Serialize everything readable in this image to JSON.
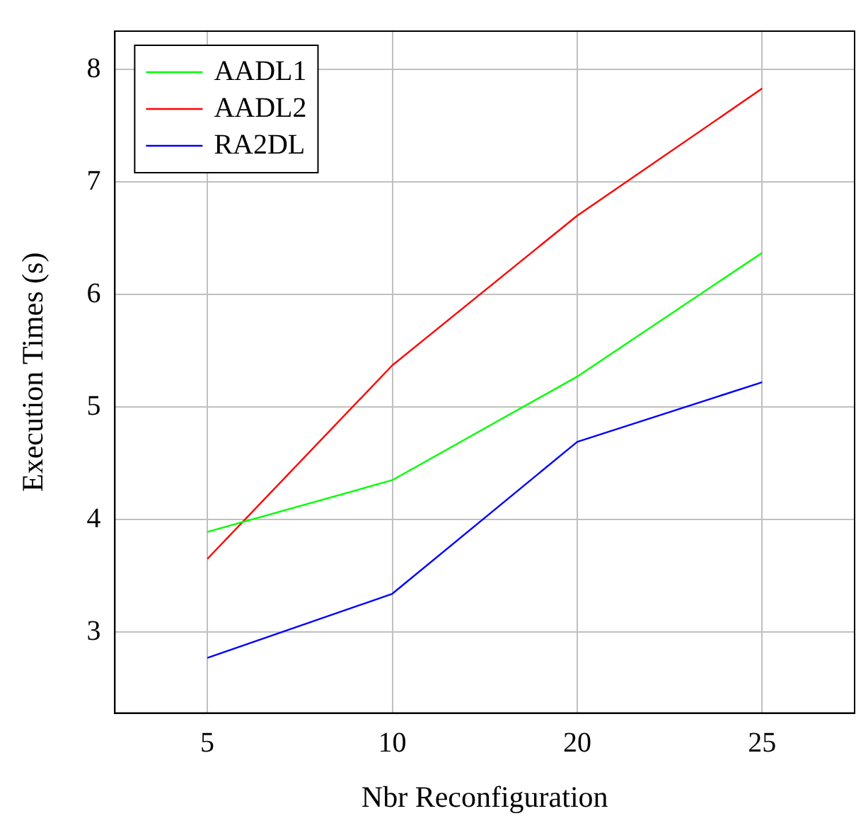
{
  "chart_data": {
    "type": "line",
    "xlabel": "Nbr Reconfiguration",
    "ylabel": "Execution Times (s)",
    "categories": [
      "5",
      "10",
      "20",
      "25"
    ],
    "series": [
      {
        "name": "AADL1",
        "color": "#00ff00",
        "values": [
          3.89,
          4.35,
          5.27,
          6.37
        ]
      },
      {
        "name": "AADL2",
        "color": "#ff0000",
        "values": [
          3.65,
          5.37,
          6.7,
          7.83
        ]
      },
      {
        "name": "RA2DL",
        "color": "#0000ff",
        "values": [
          2.77,
          3.34,
          4.69,
          5.22
        ]
      }
    ],
    "ylim": [
      2.28,
      8.34
    ],
    "yticks": [
      3,
      4,
      5,
      6,
      7,
      8
    ],
    "grid": true,
    "legend": "top left",
    "marker": "none",
    "line_style": "solid"
  }
}
